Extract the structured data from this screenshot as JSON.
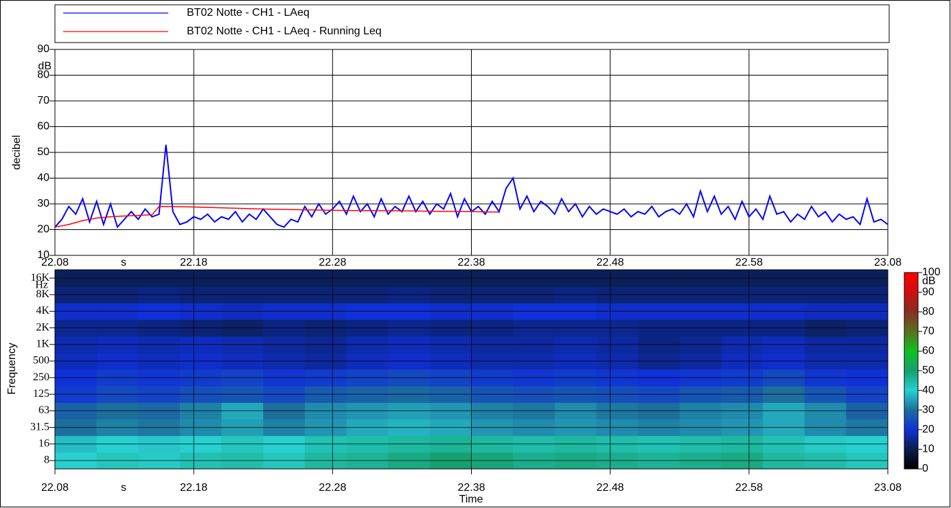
{
  "chart_data": [
    {
      "type": "line",
      "y_label": "decibel",
      "y_unit": "dB",
      "x_unit": "s",
      "ylim": [
        10,
        90
      ],
      "yticks": [
        10,
        20,
        30,
        40,
        50,
        60,
        70,
        80,
        90
      ],
      "xlim": [
        0,
        60
      ],
      "xticks": [
        {
          "value": 0,
          "label": "22.08"
        },
        {
          "value": 10,
          "label": "22.18"
        },
        {
          "value": 20,
          "label": "22.28"
        },
        {
          "value": 30,
          "label": "22.38"
        },
        {
          "value": 40,
          "label": "22.48"
        },
        {
          "value": 50,
          "label": "22.58"
        },
        {
          "value": 60,
          "label": "23.08"
        }
      ],
      "grid": true,
      "series": [
        {
          "name": "BT02 Notte - CH1 - LAeq",
          "color": "#0000ff",
          "x": [
            0,
            0.5,
            1,
            1.5,
            2,
            2.5,
            3,
            3.5,
            4,
            4.5,
            5,
            5.5,
            6,
            6.5,
            7,
            7.5,
            8,
            8.5,
            9,
            9.5,
            10,
            10.5,
            11,
            11.5,
            12,
            12.5,
            13,
            13.5,
            14,
            14.5,
            15,
            15.5,
            16,
            16.5,
            17,
            17.5,
            18,
            18.5,
            19,
            19.5,
            20,
            20.5,
            21,
            21.5,
            22,
            22.5,
            23,
            23.5,
            24,
            24.5,
            25,
            25.5,
            26,
            26.5,
            27,
            27.5,
            28,
            28.5,
            29,
            29.5,
            30,
            30.5,
            31,
            31.5,
            32,
            32.5,
            33,
            33.5,
            34,
            34.5,
            35,
            35.5,
            36,
            36.5,
            37,
            37.5,
            38,
            38.5,
            39,
            39.5,
            40,
            40.5,
            41,
            41.5,
            42,
            42.5,
            43,
            43.5,
            44,
            44.5,
            45,
            45.5,
            46,
            46.5,
            47,
            47.5,
            48,
            48.5,
            49,
            49.5,
            50,
            50.5,
            51,
            51.5,
            52,
            52.5,
            53,
            53.5,
            54,
            54.5,
            55,
            55.5,
            56,
            56.5,
            57,
            57.5,
            58,
            58.5,
            59,
            59.5,
            60
          ],
          "values": [
            21,
            24,
            29,
            26,
            32,
            23,
            31,
            22,
            30,
            21,
            24,
            27,
            24,
            28,
            25,
            26,
            53,
            27,
            22,
            23,
            25,
            24,
            26,
            23,
            25,
            24,
            27,
            23,
            26,
            24,
            28,
            25,
            22,
            21,
            24,
            23,
            29,
            25,
            30,
            26,
            28,
            31,
            26,
            33,
            27,
            30,
            25,
            32,
            26,
            29,
            27,
            33,
            27,
            31,
            26,
            30,
            28,
            34,
            25,
            32,
            27,
            29,
            26,
            31,
            27,
            36,
            40,
            28,
            33,
            27,
            31,
            29,
            26,
            32,
            27,
            30,
            25,
            29,
            26,
            28,
            27,
            26,
            28,
            25,
            27,
            26,
            29,
            25,
            27,
            28,
            26,
            30,
            25,
            35,
            27,
            33,
            26,
            29,
            24,
            31,
            25,
            28,
            24,
            33,
            26,
            27,
            23,
            26,
            24,
            29,
            25,
            27,
            23,
            26,
            24,
            25,
            22,
            32,
            23,
            24,
            22
          ]
        },
        {
          "name": "BT02 Notte - CH1 - LAeq - Running Leq",
          "color": "#ff0000",
          "x": [
            0,
            1,
            2,
            3,
            4,
            5,
            6,
            7,
            7.5,
            8,
            10,
            15,
            20,
            25,
            30,
            32
          ],
          "values": [
            21,
            22,
            23.5,
            24.5,
            25,
            25.3,
            25.5,
            25.8,
            29,
            29,
            28.8,
            28,
            27.5,
            27.3,
            27,
            26.8
          ]
        }
      ]
    },
    {
      "type": "heatmap",
      "y_label": "Frequency",
      "y_unit": "Hz",
      "x_label": "Time",
      "x_unit": "s",
      "xlim": [
        0,
        60
      ],
      "xticks": [
        {
          "value": 0,
          "label": "22.08"
        },
        {
          "value": 10,
          "label": "22.18"
        },
        {
          "value": 20,
          "label": "22.28"
        },
        {
          "value": 30,
          "label": "22.38"
        },
        {
          "value": 40,
          "label": "22.48"
        },
        {
          "value": 50,
          "label": "22.58"
        },
        {
          "value": 60,
          "label": "23.08"
        }
      ],
      "x_bins": [
        0,
        3,
        6,
        9,
        12,
        15,
        18,
        21,
        24,
        27,
        30,
        33,
        36,
        39,
        42,
        45,
        48,
        51,
        54,
        57,
        60
      ],
      "categories": [
        "8",
        "16",
        "31.5",
        "63",
        "125",
        "250",
        "500",
        "1K",
        "2K",
        "4K",
        "8K",
        "16K"
      ],
      "z": [
        [
          40,
          42,
          41,
          43,
          44,
          42,
          45,
          46,
          48,
          50,
          49,
          47,
          48,
          47,
          46,
          47,
          48,
          45,
          44,
          42
        ],
        [
          38,
          40,
          39,
          40,
          42,
          40,
          43,
          44,
          45,
          46,
          45,
          44,
          45,
          44,
          43,
          44,
          45,
          43,
          41,
          40
        ],
        [
          30,
          32,
          31,
          33,
          35,
          32,
          34,
          36,
          37,
          36,
          34,
          33,
          34,
          33,
          32,
          33,
          34,
          36,
          33,
          31
        ],
        [
          28,
          30,
          29,
          32,
          36,
          30,
          33,
          34,
          35,
          34,
          32,
          31,
          33,
          31,
          30,
          32,
          33,
          36,
          33,
          28
        ],
        [
          22,
          24,
          23,
          25,
          26,
          24,
          27,
          28,
          29,
          28,
          26,
          25,
          26,
          25,
          24,
          26,
          27,
          30,
          26,
          23
        ],
        [
          20,
          22,
          21,
          22,
          23,
          21,
          22,
          23,
          24,
          23,
          22,
          21,
          22,
          21,
          20,
          21,
          22,
          24,
          21,
          20
        ],
        [
          18,
          19,
          18,
          19,
          18,
          17,
          16,
          18,
          19,
          18,
          17,
          17,
          18,
          17,
          15,
          16,
          18,
          19,
          17,
          17
        ],
        [
          17,
          18,
          17,
          18,
          17,
          16,
          15,
          17,
          18,
          17,
          16,
          16,
          17,
          16,
          14,
          15,
          17,
          18,
          16,
          16
        ],
        [
          15,
          15,
          14,
          13,
          12,
          14,
          13,
          14,
          15,
          14,
          14,
          15,
          15,
          15,
          14,
          14,
          14,
          14,
          12,
          13
        ],
        [
          19,
          19,
          20,
          19,
          18,
          19,
          19,
          20,
          20,
          19,
          19,
          20,
          20,
          19,
          19,
          19,
          19,
          19,
          18,
          18
        ],
        [
          13,
          13,
          14,
          13,
          13,
          13,
          13,
          13,
          14,
          13,
          13,
          13,
          14,
          13,
          13,
          13,
          13,
          13,
          13,
          13
        ],
        [
          11,
          11,
          11,
          11,
          11,
          11,
          11,
          11,
          11,
          11,
          11,
          11,
          11,
          11,
          11,
          11,
          11,
          11,
          11,
          11
        ]
      ],
      "zlim": [
        0,
        100
      ],
      "zticks": [
        0,
        10,
        20,
        30,
        40,
        50,
        60,
        70,
        80,
        90,
        100
      ],
      "z_unit": "dB",
      "colors": [
        "#000000",
        "#0a1e4a",
        "#1030d8",
        "#1c6e9c",
        "#28d0d0",
        "#14a070",
        "#10c020",
        "#5a7020",
        "#843020",
        "#d01010",
        "#ff0000"
      ],
      "grid": true
    }
  ]
}
